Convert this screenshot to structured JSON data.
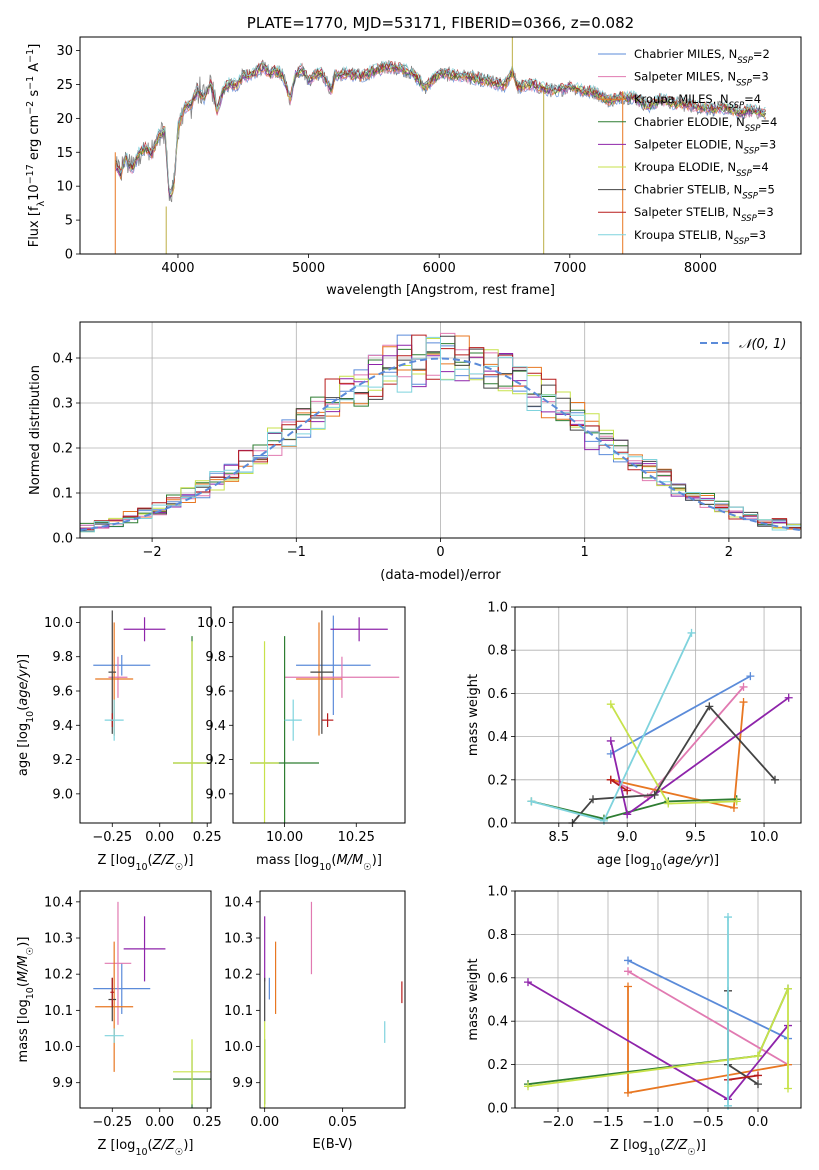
{
  "colors": {
    "chabrier_miles": "#5b8bd9",
    "salpeter_miles": "#e17ab1",
    "kroupa_miles": "#e87722",
    "chabrier_elodie": "#2e7d32",
    "salpeter_elodie": "#8e24aa",
    "kroupa_elodie": "#c7e24b",
    "chabrier_stelib": "#444444",
    "salpeter_stelib": "#b71c1c",
    "kroupa_stelib": "#7fd3dd",
    "normal": "#5b8bd9"
  },
  "chart_data": [
    {
      "type": "line",
      "title": "PLATE=1770, MJD=53171, FIBERID=0366, z=0.082",
      "xlabel": "wavelength [Angstrom, rest frame]",
      "ylabel": "Flux [fλ10⁻¹⁷ erg cm⁻² s⁻¹ A⁻¹]",
      "xlim": [
        3250,
        8770
      ],
      "ylim": [
        0,
        32
      ],
      "xticks": [
        "4000",
        "5000",
        "6000",
        "7000",
        "8000"
      ],
      "yticks": [
        "0",
        "5",
        "10",
        "15",
        "20",
        "25",
        "30"
      ],
      "legend_position": "top-right",
      "legend": [
        {
          "label": "Chabrier MILES, N",
          "sub": "SSP",
          "tail": "=2",
          "color_key": "chabrier_miles"
        },
        {
          "label": "Salpeter MILES, N",
          "sub": "SSP",
          "tail": "=3",
          "color_key": "salpeter_miles"
        },
        {
          "label": "Kroupa MILES, N",
          "sub": "SSP",
          "tail": "=4",
          "color_key": "kroupa_miles"
        },
        {
          "label": "Chabrier ELODIE, N",
          "sub": "SSP",
          "tail": "=4",
          "color_key": "chabrier_elodie"
        },
        {
          "label": "Salpeter ELODIE, N",
          "sub": "SSP",
          "tail": "=3",
          "color_key": "salpeter_elodie"
        },
        {
          "label": "Kroupa ELODIE, N",
          "sub": "SSP",
          "tail": "=4",
          "color_key": "kroupa_elodie"
        },
        {
          "label": "Chabrier STELIB, N",
          "sub": "SSP",
          "tail": "=5",
          "color_key": "chabrier_stelib"
        },
        {
          "label": "Salpeter STELIB, N",
          "sub": "SSP",
          "tail": "=3",
          "color_key": "salpeter_stelib"
        },
        {
          "label": "Kroupa STELIB, N",
          "sub": "SSP",
          "tail": "=3",
          "color_key": "kroupa_stelib"
        }
      ],
      "spectrum": {
        "x": [
          3520,
          3560,
          3600,
          3650,
          3700,
          3750,
          3800,
          3850,
          3900,
          3934,
          3968,
          4000,
          4050,
          4100,
          4150,
          4200,
          4250,
          4300,
          4350,
          4400,
          4450,
          4500,
          4550,
          4600,
          4650,
          4700,
          4750,
          4800,
          4861,
          4900,
          4950,
          5000,
          5050,
          5100,
          5175,
          5200,
          5300,
          5400,
          5500,
          5600,
          5700,
          5800,
          5893,
          6000,
          6100,
          6200,
          6300,
          6400,
          6500,
          6563,
          6600,
          6700,
          6800,
          6900,
          7000,
          7100,
          7200,
          7300,
          7400,
          7500,
          7600,
          7700,
          7800,
          7900,
          8000,
          8100,
          8200,
          8300,
          8400,
          8500
        ],
        "y": [
          13.2,
          11.8,
          14.2,
          12.6,
          14.8,
          15.6,
          14.6,
          17.4,
          18.2,
          8.5,
          9.8,
          18.6,
          21.6,
          22.0,
          24.2,
          23.0,
          25.2,
          21.2,
          24.4,
          25.2,
          24.8,
          26.4,
          26.2,
          27.0,
          27.6,
          26.6,
          27.0,
          26.4,
          22.8,
          26.6,
          27.2,
          25.6,
          26.4,
          26.8,
          24.0,
          26.4,
          26.6,
          26.2,
          27.0,
          27.6,
          27.4,
          26.6,
          24.6,
          26.6,
          26.4,
          26.2,
          25.8,
          25.4,
          24.8,
          27.0,
          24.6,
          25.0,
          24.4,
          24.0,
          24.8,
          24.0,
          23.8,
          22.6,
          23.2,
          23.0,
          21.8,
          22.8,
          22.2,
          22.0,
          21.6,
          21.4,
          21.6,
          20.8,
          21.2,
          20.6
        ]
      }
    },
    {
      "type": "line",
      "xlabel": "(data-model)/error",
      "ylabel": "Normed distribution",
      "xlim": [
        -2.5,
        2.5
      ],
      "ylim": [
        0,
        0.48
      ],
      "xticks": [
        "−2",
        "−1",
        "0",
        "1",
        "2"
      ],
      "yticks": [
        "0.0",
        "0.1",
        "0.2",
        "0.3",
        "0.4"
      ],
      "grid": true,
      "legend_position": "top-right",
      "legend": [
        {
          "label": "𝒩(0, 1)",
          "color_key": "normal",
          "style": "dashed"
        }
      ],
      "series": [
        {
          "name": "𝒩(0, 1)",
          "function": "gaussian",
          "mu": 0,
          "sigma": 1
        }
      ],
      "histogram_bins": {
        "start": -2.5,
        "width": 0.1,
        "count": 50
      }
    },
    {
      "type": "scatter",
      "xlabel": "Z [log10(Z/Z☉)]",
      "ylabel": "age  [log10(age/yr)]",
      "xlim": [
        -0.42,
        0.27
      ],
      "ylim": [
        8.83,
        10.09
      ],
      "xticks": [
        "−0.25",
        "0.00",
        "0.25"
      ],
      "yticks": [
        "9.0",
        "9.2",
        "9.4",
        "9.6",
        "9.8",
        "10.0"
      ],
      "points": [
        {
          "key": "chabrier_miles",
          "x": -0.2,
          "y": 9.75,
          "xerr": 0.15,
          "yerr": 0.06
        },
        {
          "key": "salpeter_miles",
          "x": -0.22,
          "y": 9.68,
          "xerr": 0.05,
          "yerr": 0.12
        },
        {
          "key": "kroupa_miles",
          "x": -0.24,
          "y": 9.67,
          "xerr": 0.1,
          "yerr": 0.33
        },
        {
          "key": "chabrier_elodie",
          "x": 0.17,
          "y": 9.18,
          "xerr": 0.1,
          "yerr": 0.74
        },
        {
          "key": "salpeter_elodie",
          "x": -0.08,
          "y": 9.96,
          "xerr": 0.11,
          "yerr": 0.07
        },
        {
          "key": "kroupa_elodie",
          "x": 0.17,
          "y": 9.18,
          "xerr": 0.1,
          "yerr": 0.71
        },
        {
          "key": "chabrier_stelib",
          "x": -0.25,
          "y": 9.71,
          "xerr": 0.02,
          "yerr": 0.36
        },
        {
          "key": "salpeter_stelib",
          "x": -0.25,
          "y": 9.43,
          "xerr": 0.01,
          "yerr": 0.04
        },
        {
          "key": "kroupa_stelib",
          "x": -0.24,
          "y": 9.43,
          "xerr": 0.05,
          "yerr": 0.12
        }
      ]
    },
    {
      "type": "scatter",
      "xlabel": "mass [log10(M/M☉)]",
      "ylabel": "",
      "xlim": [
        9.82,
        10.42
      ],
      "ylim": [
        8.83,
        10.09
      ],
      "xticks": [
        "10.00",
        "10.25"
      ],
      "yticks": [
        "9.0",
        "9.2",
        "9.4",
        "9.6",
        "9.8",
        "10.0"
      ],
      "points": [
        {
          "key": "chabrier_miles",
          "x": 10.17,
          "y": 9.75,
          "xerr": 0.13,
          "yerr": 0.29
        },
        {
          "key": "salpeter_miles",
          "x": 10.2,
          "y": 9.68,
          "xerr": 0.2,
          "yerr": 0.12
        },
        {
          "key": "kroupa_miles",
          "x": 10.12,
          "y": 9.67,
          "xerr": 0.08,
          "yerr": 0.33
        },
        {
          "key": "chabrier_elodie",
          "x": 10.0,
          "y": 9.18,
          "xerr": 0.12,
          "yerr": 0.74
        },
        {
          "key": "salpeter_elodie",
          "x": 10.26,
          "y": 9.96,
          "xerr": 0.1,
          "yerr": 0.07
        },
        {
          "key": "kroupa_elodie",
          "x": 9.93,
          "y": 9.18,
          "xerr": 0.05,
          "yerr": 0.71
        },
        {
          "key": "chabrier_stelib",
          "x": 10.13,
          "y": 9.71,
          "xerr": 0.04,
          "yerr": 0.36
        },
        {
          "key": "salpeter_stelib",
          "x": 10.15,
          "y": 9.43,
          "xerr": 0.02,
          "yerr": 0.04
        },
        {
          "key": "kroupa_stelib",
          "x": 10.03,
          "y": 9.43,
          "xerr": 0.03,
          "yerr": 0.12
        }
      ]
    },
    {
      "type": "line",
      "xlabel": "age  [log10(age/yr)]",
      "ylabel": "mass weight",
      "xlim": [
        8.18,
        10.27
      ],
      "ylim": [
        0,
        1
      ],
      "xticks": [
        "8.5",
        "9.0",
        "9.5",
        "10.0"
      ],
      "yticks": [
        "0.0",
        "0.2",
        "0.4",
        "0.6",
        "0.8",
        "1.0"
      ],
      "grid": true,
      "series": [
        {
          "key": "chabrier_miles",
          "x": [
            8.88,
            9.9
          ],
          "y": [
            0.32,
            0.68
          ]
        },
        {
          "key": "salpeter_miles",
          "x": [
            8.88,
            9.15,
            9.85
          ],
          "y": [
            0.2,
            0.12,
            0.63
          ]
        },
        {
          "key": "kroupa_miles",
          "x": [
            8.88,
            9.78,
            9.85
          ],
          "y": [
            0.2,
            0.07,
            0.56
          ]
        },
        {
          "key": "chabrier_elodie",
          "x": [
            8.3,
            8.83,
            9.3,
            9.8
          ],
          "y": [
            0.1,
            0.02,
            0.1,
            0.11
          ]
        },
        {
          "key": "salpeter_elodie",
          "x": [
            8.88,
            9.0,
            10.18
          ],
          "y": [
            0.38,
            0.04,
            0.58
          ]
        },
        {
          "key": "kroupa_elodie",
          "x": [
            8.88,
            9.3,
            9.8
          ],
          "y": [
            0.55,
            0.09,
            0.1
          ]
        },
        {
          "key": "chabrier_stelib",
          "x": [
            8.6,
            8.75,
            9.2,
            9.6,
            10.08
          ],
          "y": [
            0.0,
            0.11,
            0.13,
            0.54,
            0.2
          ]
        },
        {
          "key": "salpeter_stelib",
          "x": [
            8.88,
            9.0
          ],
          "y": [
            0.2,
            0.15
          ]
        },
        {
          "key": "kroupa_stelib",
          "x": [
            8.3,
            8.83,
            9.47
          ],
          "y": [
            0.1,
            0.01,
            0.88
          ]
        }
      ]
    },
    {
      "type": "scatter",
      "xlabel": "Z [log10(Z/Z☉)]",
      "ylabel": "mass [log10(M/M☉)]",
      "xlim": [
        -0.42,
        0.27
      ],
      "ylim": [
        9.83,
        10.43
      ],
      "xticks": [
        "−0.25",
        "0.00",
        "0.25"
      ],
      "yticks": [
        "9.9",
        "10.0",
        "10.1",
        "10.2",
        "10.3",
        "10.4"
      ],
      "points": [
        {
          "key": "chabrier_miles",
          "x": -0.2,
          "y": 10.16,
          "xerr": 0.15,
          "yerr": 0.07
        },
        {
          "key": "salpeter_miles",
          "x": -0.22,
          "y": 10.23,
          "xerr": 0.07,
          "yerr": 0.17
        },
        {
          "key": "kroupa_miles",
          "x": -0.24,
          "y": 10.11,
          "xerr": 0.1,
          "yerr": 0.18
        },
        {
          "key": "chabrier_elodie",
          "x": 0.17,
          "y": 9.91,
          "xerr": 0.1,
          "yerr": 0.08
        },
        {
          "key": "salpeter_elodie",
          "x": -0.08,
          "y": 10.27,
          "xerr": 0.11,
          "yerr": 0.09
        },
        {
          "key": "kroupa_elodie",
          "x": 0.17,
          "y": 9.93,
          "xerr": 0.1,
          "yerr": 0.09
        },
        {
          "key": "chabrier_stelib",
          "x": -0.25,
          "y": 10.13,
          "xerr": 0.02,
          "yerr": 0.06
        },
        {
          "key": "salpeter_stelib",
          "x": -0.25,
          "y": 10.15,
          "xerr": 0.01,
          "yerr": 0.04
        },
        {
          "key": "kroupa_stelib",
          "x": -0.24,
          "y": 10.03,
          "xerr": 0.05,
          "yerr": 0.02
        }
      ]
    },
    {
      "type": "scatter",
      "xlabel": "E(B-V)",
      "ylabel": "",
      "xlim": [
        -0.003,
        0.09
      ],
      "ylim": [
        9.83,
        10.43
      ],
      "xticks": [
        "0.00",
        "0.05"
      ],
      "yticks": [
        "9.9",
        "10.0",
        "10.1",
        "10.2",
        "10.3",
        "10.4"
      ],
      "points": [
        {
          "key": "chabrier_miles",
          "x": 0.003,
          "y": 10.16,
          "xerr": 0,
          "yerr": 0.03
        },
        {
          "key": "salpeter_miles",
          "x": 0.03,
          "y": 10.3,
          "xerr": 0,
          "yerr": 0.1
        },
        {
          "key": "kroupa_miles",
          "x": 0.007,
          "y": 10.19,
          "xerr": 0,
          "yerr": 0.1
        },
        {
          "key": "chabrier_elodie",
          "x": 0.0,
          "y": 9.93,
          "xerr": 0,
          "yerr": 0.09
        },
        {
          "key": "salpeter_elodie",
          "x": 0.0,
          "y": 10.27,
          "xerr": 0,
          "yerr": 0.09
        },
        {
          "key": "kroupa_elodie",
          "x": 0.0,
          "y": 9.95,
          "xerr": 0,
          "yerr": 0.12
        },
        {
          "key": "chabrier_stelib",
          "x": 0.0,
          "y": 10.13,
          "xerr": 0,
          "yerr": 0.06
        },
        {
          "key": "salpeter_stelib",
          "x": 0.088,
          "y": 10.15,
          "xerr": 0,
          "yerr": 0.03
        },
        {
          "key": "kroupa_stelib",
          "x": 0.077,
          "y": 10.04,
          "xerr": 0,
          "yerr": 0.03
        }
      ]
    },
    {
      "type": "line",
      "xlabel": "Z [log10(Z/Z☉)]",
      "ylabel": "mass weight",
      "xlim": [
        -2.43,
        0.43
      ],
      "ylim": [
        0,
        1
      ],
      "xticks": [
        "−2.0",
        "−1.5",
        "−1.0",
        "−0.5",
        "0.0"
      ],
      "yticks": [
        "0.0",
        "0.2",
        "0.4",
        "0.6",
        "0.8",
        "1.0"
      ],
      "grid": true,
      "series": [
        {
          "key": "chabrier_miles",
          "x": [
            -1.3,
            0.3
          ],
          "y": [
            0.68,
            0.32
          ]
        },
        {
          "key": "salpeter_miles",
          "x": [
            -1.3,
            0.3
          ],
          "y": [
            0.63,
            0.2
          ]
        },
        {
          "key": "kroupa_miles",
          "x": [
            -1.3,
            -1.3,
            0.3
          ],
          "y": [
            0.56,
            0.07,
            0.2
          ]
        },
        {
          "key": "chabrier_elodie",
          "x": [
            -2.3,
            0.0,
            0.3
          ],
          "y": [
            0.11,
            0.24,
            0.55
          ]
        },
        {
          "key": "salpeter_elodie",
          "x": [
            -2.3,
            -0.3,
            0.3
          ],
          "y": [
            0.58,
            0.04,
            0.38
          ]
        },
        {
          "key": "kroupa_elodie",
          "x": [
            -2.3,
            0.0,
            0.3,
            0.3
          ],
          "y": [
            0.1,
            0.24,
            0.55,
            0.09
          ]
        },
        {
          "key": "chabrier_stelib",
          "x": [
            -0.3,
            -0.3,
            0.0
          ],
          "y": [
            0.54,
            0.2,
            0.11
          ]
        },
        {
          "key": "salpeter_stelib",
          "x": [
            -0.3,
            0.0
          ],
          "y": [
            0.13,
            0.15
          ]
        },
        {
          "key": "kroupa_stelib",
          "x": [
            -0.3,
            -0.3
          ],
          "y": [
            0.88,
            0.01
          ]
        }
      ]
    }
  ]
}
